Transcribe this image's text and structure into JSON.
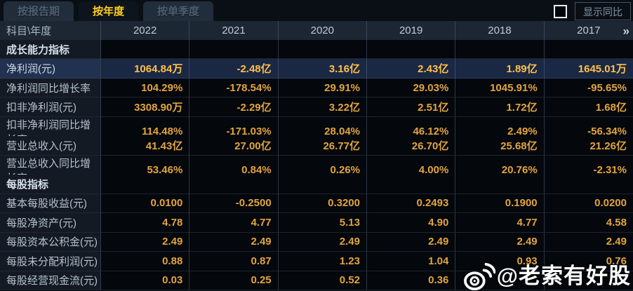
{
  "tabs": [
    {
      "name": "tab-by-report-period",
      "label": "按报告期",
      "active": false
    },
    {
      "name": "tab-by-year",
      "label": "按年度",
      "active": true
    },
    {
      "name": "tab-by-quarter",
      "label": "按单季度",
      "active": false
    }
  ],
  "controls": {
    "show_yoy_label": "显示同比",
    "checkbox_checked": false
  },
  "table": {
    "corner_label": "科目\\年度",
    "years": [
      "2022",
      "2021",
      "2020",
      "2019",
      "2018",
      "2017"
    ],
    "more_icon": "»",
    "rows": [
      {
        "type": "section",
        "label": "成长能力指标",
        "values": [
          "",
          "",
          "",
          "",
          "",
          ""
        ]
      },
      {
        "type": "data",
        "label": "净利润(元)",
        "highlight": true,
        "values": [
          "1064.84万",
          "-2.48亿",
          "3.16亿",
          "2.43亿",
          "1.89亿",
          "1645.01万"
        ]
      },
      {
        "type": "data",
        "label": "净利润同比增长率",
        "values": [
          "104.29%",
          "-178.54%",
          "29.91%",
          "29.03%",
          "1045.91%",
          "-95.65%"
        ]
      },
      {
        "type": "data",
        "label": "扣非净利润(元)",
        "values": [
          "3308.90万",
          "-2.29亿",
          "3.22亿",
          "2.51亿",
          "1.72亿",
          "1.68亿"
        ]
      },
      {
        "type": "data",
        "label": "扣非净利润同比增长率",
        "values": [
          "114.48%",
          "-171.03%",
          "28.04%",
          "46.12%",
          "2.49%",
          "-56.34%"
        ]
      },
      {
        "type": "data",
        "label": "营业总收入(元)",
        "values": [
          "41.43亿",
          "27.00亿",
          "26.77亿",
          "26.70亿",
          "25.68亿",
          "21.26亿"
        ]
      },
      {
        "type": "data",
        "label": "营业总收入同比增长率",
        "values": [
          "53.46%",
          "0.84%",
          "0.26%",
          "4.00%",
          "20.76%",
          "-2.31%"
        ]
      },
      {
        "type": "section",
        "label": "每股指标",
        "values": [
          "",
          "",
          "",
          "",
          "",
          ""
        ]
      },
      {
        "type": "data",
        "label": "基本每股收益(元)",
        "values": [
          "0.0100",
          "-0.2500",
          "0.3200",
          "0.2493",
          "0.1900",
          "0.0200"
        ]
      },
      {
        "type": "data",
        "label": "每股净资产(元)",
        "values": [
          "4.78",
          "4.77",
          "5.13",
          "4.90",
          "4.77",
          "4.58"
        ]
      },
      {
        "type": "data",
        "label": "每股资本公积金(元)",
        "values": [
          "2.49",
          "2.49",
          "2.49",
          "2.49",
          "2.49",
          "2.49"
        ]
      },
      {
        "type": "data",
        "label": "每股未分配利润(元)",
        "values": [
          "0.88",
          "0.87",
          "1.23",
          "1.04",
          "0.93",
          "0.76"
        ]
      },
      {
        "type": "data",
        "label": "每股经营现金流(元)",
        "values": [
          "0.03",
          "0.25",
          "0.52",
          "0.36",
          "",
          ""
        ]
      }
    ]
  },
  "watermark": {
    "handle": "@老索有好股",
    "icon": "weibo-icon"
  },
  "colors": {
    "page_bg": "#0a0f15",
    "header_bg": "#1c2733",
    "value_gold": "#e2a53f",
    "highlight_gold": "#ffc04a",
    "highlight_row_bg": "#1a2844",
    "tab_active_text": "#ffd21f",
    "watermark_color": "#fdfdfd"
  }
}
